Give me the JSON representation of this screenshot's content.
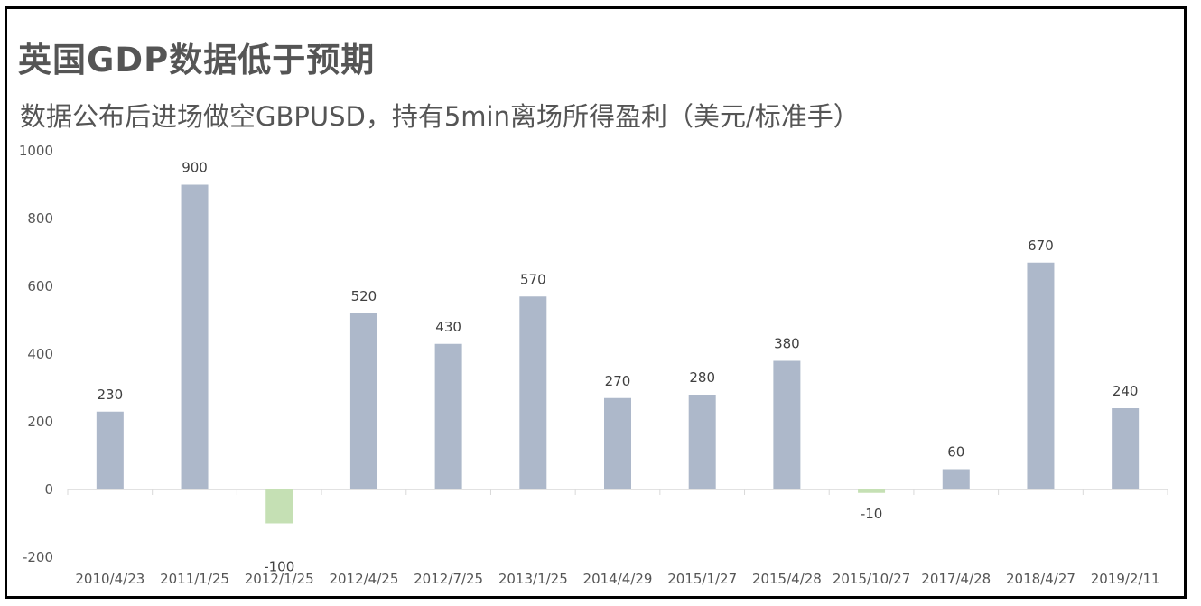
{
  "title": "英国GDP数据低于预期",
  "subtitle": "数据公布后进场做空GBPUSD，持有5min离场所得盈利（美元/标准手）",
  "chart_data": {
    "type": "bar",
    "title": "英国GDP数据低于预期",
    "subtitle": "数据公布后进场做空GBPUSD，持有5min离场所得盈利（美元/标准手）",
    "categories": [
      "2010/4/23",
      "2011/1/25",
      "2012/1/25",
      "2012/4/25",
      "2012/7/25",
      "2013/1/25",
      "2014/4/29",
      "2015/1/27",
      "2015/4/28",
      "2015/10/27",
      "2017/4/28",
      "2018/4/27",
      "2019/2/11"
    ],
    "values": [
      230,
      900,
      -100,
      520,
      430,
      570,
      270,
      280,
      380,
      -10,
      60,
      670,
      240
    ],
    "data_labels": [
      "230",
      "900",
      "-100",
      "520",
      "430",
      "570",
      "270",
      "280",
      "380",
      "-10",
      "60",
      "670",
      "240"
    ],
    "ylim": [
      -200,
      1000
    ],
    "yticks": [
      "1000",
      "800",
      "600",
      "400",
      "200",
      "0",
      "-200"
    ],
    "ytick_values": [
      1000,
      800,
      600,
      400,
      200,
      0,
      -200
    ],
    "grid": false,
    "colors": {
      "positive": "#adb8ca",
      "negative": "#c5e0b4"
    }
  }
}
